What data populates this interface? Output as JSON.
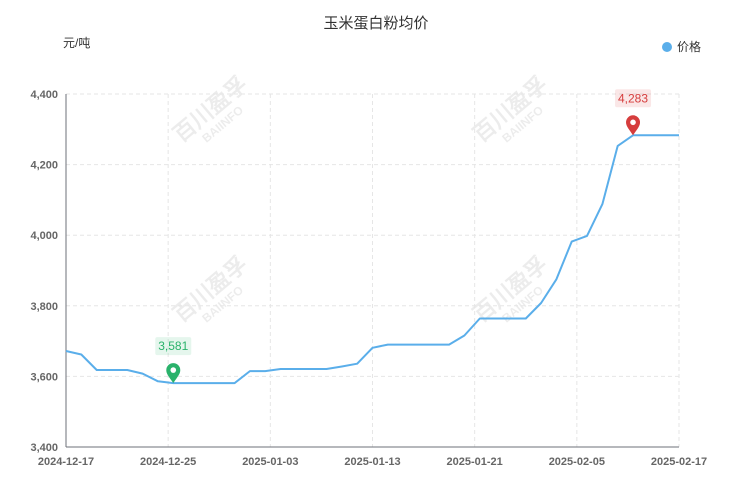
{
  "chart_data": {
    "type": "line",
    "title": "玉米蛋白粉均价",
    "ylabel": "元/吨",
    "ylim": [
      3400,
      4400
    ],
    "yticks": [
      "3,400",
      "3,600",
      "3,800",
      "4,000",
      "4,200",
      "4,400"
    ],
    "x_tick_labels": [
      "2024-12-17",
      "2024-12-25",
      "2025-01-03",
      "2025-01-13",
      "2025-01-21",
      "2025-02-05",
      "2025-02-17"
    ],
    "series": [
      {
        "name": "价格",
        "color": "#5aaeea",
        "values": [
          3672,
          3662,
          3618,
          3618,
          3618,
          3608,
          3586,
          3581,
          3581,
          3581,
          3581,
          3581,
          3615,
          3615,
          3621,
          3621,
          3621,
          3621,
          3628,
          3636,
          3681,
          3690,
          3690,
          3690,
          3690,
          3690,
          3716,
          3764,
          3764,
          3764,
          3764,
          3808,
          3875,
          3982,
          3998,
          4088,
          4253,
          4283,
          4283,
          4283,
          4283
        ]
      }
    ],
    "markers": [
      {
        "type": "min",
        "index": 7,
        "label": "3,581",
        "color": "#2ab26b"
      },
      {
        "type": "max",
        "index": 37,
        "label": "4,283",
        "color": "#d63d3d"
      }
    ],
    "legend_position": "top-right",
    "grid": true
  },
  "watermark": {
    "cn": "百川盈孚",
    "en": "BAIINFO"
  }
}
